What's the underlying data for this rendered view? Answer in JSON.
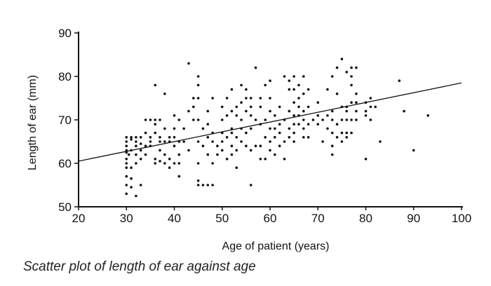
{
  "caption": "Scatter plot of length of ear against age",
  "chart_data": {
    "type": "scatter",
    "title": "",
    "xlabel": "Age of patient (years)",
    "ylabel": "Length of ear (mm)",
    "xlim": [
      20,
      100
    ],
    "ylim": [
      50,
      90
    ],
    "xticks": [
      20,
      30,
      40,
      50,
      60,
      70,
      80,
      90,
      100
    ],
    "yticks": [
      50,
      60,
      70,
      80,
      90
    ],
    "grid": false,
    "trendline": {
      "x": [
        20,
        100
      ],
      "y": [
        60.5,
        78.5
      ]
    },
    "points": [
      [
        30,
        53
      ],
      [
        30,
        55
      ],
      [
        30,
        57
      ],
      [
        30,
        59
      ],
      [
        30,
        60
      ],
      [
        30,
        61
      ],
      [
        30,
        62.5
      ],
      [
        30,
        63
      ],
      [
        30,
        64
      ],
      [
        30,
        65
      ],
      [
        30,
        66
      ],
      [
        30.5,
        62
      ],
      [
        31,
        54.5
      ],
      [
        31,
        56.5
      ],
      [
        31,
        59
      ],
      [
        31,
        63
      ],
      [
        31,
        65.5
      ],
      [
        31,
        66
      ],
      [
        32,
        52.5
      ],
      [
        32,
        60
      ],
      [
        32,
        62
      ],
      [
        32,
        64
      ],
      [
        32,
        65
      ],
      [
        32,
        66
      ],
      [
        33,
        55
      ],
      [
        33,
        61
      ],
      [
        33,
        63
      ],
      [
        33,
        64.5
      ],
      [
        33,
        66
      ],
      [
        34,
        62
      ],
      [
        34,
        64
      ],
      [
        34,
        67
      ],
      [
        34,
        70
      ],
      [
        35,
        64
      ],
      [
        35,
        65
      ],
      [
        35,
        66
      ],
      [
        35,
        70
      ],
      [
        36,
        60
      ],
      [
        36,
        61
      ],
      [
        36,
        67
      ],
      [
        36,
        69
      ],
      [
        36,
        70
      ],
      [
        36,
        78
      ],
      [
        37,
        60.5
      ],
      [
        37,
        63
      ],
      [
        37,
        65
      ],
      [
        37,
        66
      ],
      [
        37,
        70
      ],
      [
        38,
        60
      ],
      [
        38,
        62
      ],
      [
        38,
        65
      ],
      [
        38,
        68
      ],
      [
        38,
        76
      ],
      [
        39,
        59
      ],
      [
        39,
        61
      ],
      [
        39,
        65
      ],
      [
        39,
        66
      ],
      [
        40,
        60
      ],
      [
        40,
        64
      ],
      [
        40,
        66
      ],
      [
        40,
        68
      ],
      [
        40,
        71
      ],
      [
        41,
        57
      ],
      [
        41,
        60
      ],
      [
        41,
        62
      ],
      [
        41,
        65
      ],
      [
        41,
        70
      ],
      [
        42,
        65
      ],
      [
        42,
        68
      ],
      [
        43,
        63
      ],
      [
        43,
        72
      ],
      [
        43,
        83
      ],
      [
        44,
        70
      ],
      [
        44,
        73
      ],
      [
        44,
        75
      ],
      [
        45,
        55
      ],
      [
        45,
        56
      ],
      [
        45,
        60
      ],
      [
        45,
        65
      ],
      [
        45,
        70
      ],
      [
        45,
        75
      ],
      [
        45,
        78
      ],
      [
        45,
        80
      ],
      [
        46,
        55
      ],
      [
        46,
        64
      ],
      [
        46,
        68
      ],
      [
        47,
        55
      ],
      [
        47,
        62
      ],
      [
        47,
        66
      ],
      [
        47,
        69
      ],
      [
        47,
        72
      ],
      [
        48,
        55
      ],
      [
        48,
        60
      ],
      [
        48,
        65
      ],
      [
        48,
        67
      ],
      [
        48,
        75
      ],
      [
        49,
        62
      ],
      [
        49,
        64
      ],
      [
        50,
        63
      ],
      [
        50,
        65
      ],
      [
        50,
        67
      ],
      [
        50,
        70
      ],
      [
        50,
        73
      ],
      [
        51,
        61
      ],
      [
        51,
        66
      ],
      [
        51,
        71
      ],
      [
        51,
        75
      ],
      [
        52,
        62
      ],
      [
        52,
        64
      ],
      [
        52,
        67
      ],
      [
        52,
        68
      ],
      [
        52,
        72
      ],
      [
        52,
        77
      ],
      [
        53,
        59
      ],
      [
        53,
        63
      ],
      [
        53,
        66
      ],
      [
        53,
        71
      ],
      [
        53,
        73
      ],
      [
        54,
        65
      ],
      [
        54,
        68
      ],
      [
        54,
        70
      ],
      [
        54,
        74
      ],
      [
        54,
        78
      ],
      [
        55,
        64
      ],
      [
        55,
        67
      ],
      [
        55,
        72
      ],
      [
        55,
        75
      ],
      [
        55,
        77
      ],
      [
        56,
        55
      ],
      [
        56,
        63
      ],
      [
        56,
        68
      ],
      [
        56,
        71
      ],
      [
        56,
        73
      ],
      [
        56,
        75
      ],
      [
        57,
        64
      ],
      [
        57,
        70
      ],
      [
        57,
        82
      ],
      [
        58,
        61
      ],
      [
        58,
        64
      ],
      [
        58,
        69
      ],
      [
        58,
        73
      ],
      [
        58,
        75
      ],
      [
        59,
        61
      ],
      [
        59,
        66
      ],
      [
        59,
        70
      ],
      [
        59,
        78
      ],
      [
        60,
        63
      ],
      [
        60,
        65
      ],
      [
        60,
        68
      ],
      [
        60,
        72
      ],
      [
        60,
        75
      ],
      [
        60,
        79
      ],
      [
        61,
        62
      ],
      [
        61,
        66
      ],
      [
        61,
        68
      ],
      [
        61,
        71
      ],
      [
        62,
        64
      ],
      [
        62,
        67
      ],
      [
        62,
        69
      ],
      [
        62,
        73
      ],
      [
        63,
        61
      ],
      [
        63,
        65
      ],
      [
        63,
        70
      ],
      [
        63,
        80
      ],
      [
        64,
        66
      ],
      [
        64,
        68
      ],
      [
        64,
        72
      ],
      [
        64,
        77
      ],
      [
        64,
        79
      ],
      [
        65,
        65
      ],
      [
        65,
        67
      ],
      [
        65,
        69
      ],
      [
        65,
        71
      ],
      [
        65,
        74
      ],
      [
        65,
        77
      ],
      [
        65,
        80
      ],
      [
        66,
        69
      ],
      [
        66,
        71
      ],
      [
        66,
        73
      ],
      [
        66,
        75
      ],
      [
        66,
        78
      ],
      [
        67,
        66
      ],
      [
        67,
        68
      ],
      [
        67,
        70
      ],
      [
        67,
        72
      ],
      [
        67,
        76
      ],
      [
        67,
        80
      ],
      [
        68,
        66
      ],
      [
        68,
        69
      ],
      [
        68,
        73
      ],
      [
        68,
        77
      ],
      [
        69,
        70
      ],
      [
        70,
        69
      ],
      [
        70,
        71
      ],
      [
        70,
        74
      ],
      [
        71,
        65
      ],
      [
        71,
        70
      ],
      [
        72,
        68
      ],
      [
        72,
        71
      ],
      [
        72,
        77
      ],
      [
        73,
        62
      ],
      [
        73,
        64
      ],
      [
        73,
        67
      ],
      [
        73,
        70
      ],
      [
        73,
        72
      ],
      [
        73,
        80
      ],
      [
        74,
        66
      ],
      [
        74,
        69
      ],
      [
        74,
        76
      ],
      [
        74,
        82
      ],
      [
        75,
        65
      ],
      [
        75,
        67
      ],
      [
        75,
        70
      ],
      [
        75,
        73
      ],
      [
        75,
        84
      ],
      [
        76,
        66
      ],
      [
        76,
        67
      ],
      [
        76,
        70
      ],
      [
        76,
        72
      ],
      [
        76,
        73
      ],
      [
        76,
        81
      ],
      [
        77,
        67
      ],
      [
        77,
        70
      ],
      [
        77,
        74
      ],
      [
        77,
        78
      ],
      [
        77,
        80
      ],
      [
        77,
        82
      ],
      [
        78,
        70
      ],
      [
        78,
        72
      ],
      [
        78,
        74
      ],
      [
        78,
        76
      ],
      [
        78,
        82
      ],
      [
        80,
        61
      ],
      [
        80,
        71
      ],
      [
        80,
        72
      ],
      [
        80,
        74
      ],
      [
        81,
        70
      ],
      [
        81,
        73
      ],
      [
        81,
        75
      ],
      [
        82,
        73
      ],
      [
        83,
        65
      ],
      [
        87,
        79
      ],
      [
        88,
        72
      ],
      [
        90,
        63
      ],
      [
        93,
        71
      ]
    ]
  }
}
